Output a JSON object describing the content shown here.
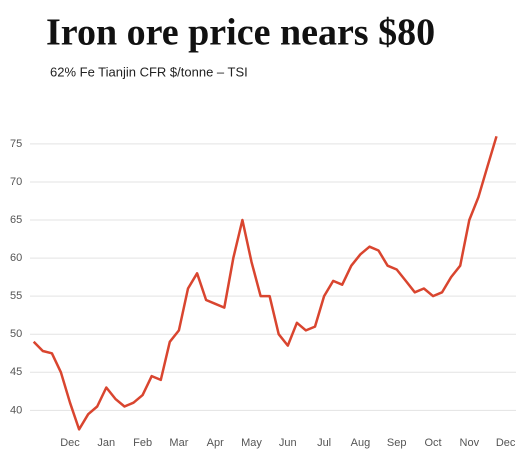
{
  "chart_data": {
    "type": "line",
    "title": "Iron ore price nears $80",
    "subtitle": "62% Fe Tianjin CFR $/tonne – TSI",
    "categories": [
      null,
      null,
      null,
      null,
      "Dec",
      null,
      null,
      null,
      "Jan",
      null,
      null,
      null,
      "Feb",
      null,
      null,
      null,
      "Mar",
      null,
      null,
      null,
      "Apr",
      null,
      null,
      null,
      "May",
      null,
      null,
      null,
      "Jun",
      null,
      null,
      null,
      "Jul",
      null,
      null,
      null,
      "Aug",
      null,
      null,
      null,
      "Sep",
      null,
      null,
      null,
      "Oct",
      null,
      null,
      null,
      "Nov",
      null,
      null,
      null,
      "Dec"
    ],
    "series": [
      {
        "name": "62% Fe Tianjin CFR",
        "color": "#d9452f",
        "values": [
          49,
          47.8,
          47.5,
          45,
          41,
          37.5,
          39.5,
          40.5,
          43,
          41.5,
          40.5,
          41,
          42,
          44.5,
          44,
          49,
          50.5,
          56,
          58,
          54.5,
          54,
          53.5,
          60,
          65,
          59.5,
          55,
          55,
          50,
          48.5,
          51.5,
          50.5,
          51,
          55,
          57,
          56.5,
          59,
          60.5,
          61.5,
          61,
          59,
          58.5,
          57,
          55.5,
          56,
          55,
          55.5,
          57.5,
          59,
          65,
          68,
          72,
          76,
          null
        ]
      }
    ],
    "ylim": [
      36.5,
      80.5
    ],
    "yticks": [
      40,
      45,
      50,
      55,
      60,
      65,
      70,
      75
    ],
    "grid": true
  }
}
